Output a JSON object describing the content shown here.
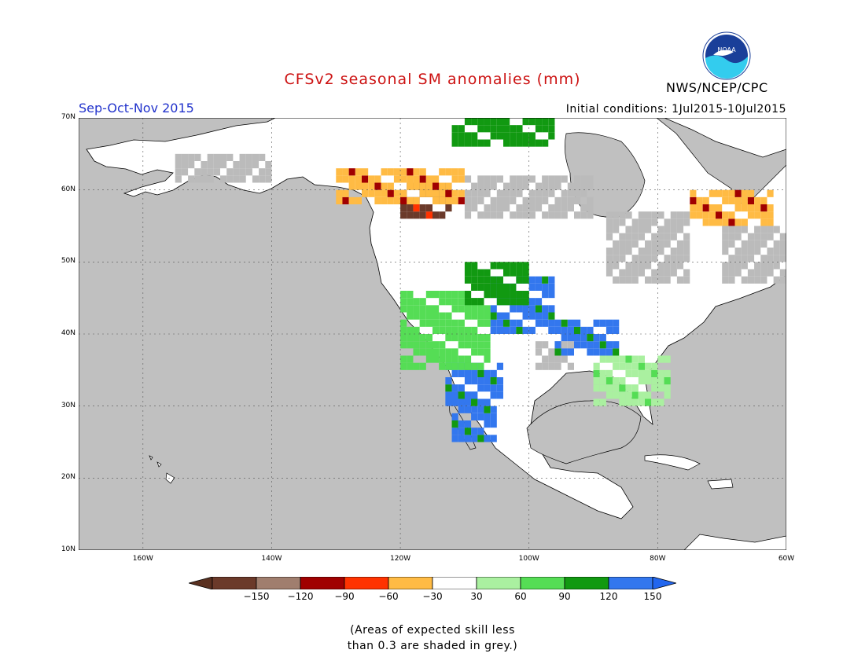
{
  "title": "CFSv2 seasonal SM anomalies (mm)",
  "season": "Sep-Oct-Nov 2015",
  "initial_conditions": "Initial conditions: 1Jul2015-10Jul2015",
  "agency": "NWS/NCEP/CPC",
  "logo_text": "NOAA",
  "note_line1": "(Areas of expected skill less",
  "note_line2": "than 0.3 are shaded in grey.)",
  "lat_labels": [
    "70N",
    "60N",
    "50N",
    "40N",
    "30N",
    "20N",
    "10N"
  ],
  "lon_labels": [
    "160W",
    "140W",
    "120W",
    "100W",
    "80W",
    "60W"
  ],
  "lon_values": [
    -160,
    -140,
    -120,
    -100,
    -80,
    -60
  ],
  "lat_values": [
    70,
    60,
    50,
    40,
    30,
    20,
    10
  ],
  "map_extent": {
    "lon_min": -170,
    "lon_max": -60,
    "lat_min": 10,
    "lat_max": 70
  },
  "colorbar": {
    "labels": [
      "-150",
      "-120",
      "-90",
      "-60",
      "-30",
      "30",
      "60",
      "90",
      "120",
      "150"
    ],
    "colors": [
      "#6b3a2a",
      "#a07e6e",
      "#a00000",
      "#ff3300",
      "#ffbb44",
      "#ffffff",
      "#aaf0a0",
      "#55dd55",
      "#119911",
      "#3377ee",
      "#3377ee"
    ],
    "colors_note": "extend left color #5a3020, right #2266ee"
  },
  "colors": {
    "ocean": "#c0c0c0",
    "land": "#ffffff",
    "grey_skill": "#bbbbbb",
    "title": "#cc1111",
    "season": "#2233cc"
  },
  "anomaly_regions": [
    {
      "name": "northern-plains-wet",
      "category": "150",
      "lon": [
        -106,
        -96
      ],
      "lat": [
        40,
        48
      ]
    },
    {
      "name": "midwest-wet",
      "category": "150",
      "lon": [
        -96,
        -86
      ],
      "lat": [
        37,
        42
      ]
    },
    {
      "name": "southwest-wet",
      "category": "150",
      "lon": [
        -113,
        -104
      ],
      "lat": [
        30,
        36
      ]
    },
    {
      "name": "mexico-wet",
      "category": "150",
      "lon": [
        -112,
        -105
      ],
      "lat": [
        25,
        32
      ]
    },
    {
      "name": "great-basin-moist",
      "category": "90",
      "lon": [
        -120,
        -106
      ],
      "lat": [
        35,
        46
      ]
    },
    {
      "name": "rockies-moist",
      "category": "120",
      "lon": [
        -110,
        -100
      ],
      "lat": [
        44,
        50
      ]
    },
    {
      "name": "southeast-moist",
      "category": "60",
      "lon": [
        -90,
        -78
      ],
      "lat": [
        30,
        37
      ]
    },
    {
      "name": "alberta-dry",
      "category": "-150",
      "lon": [
        -120,
        -112
      ],
      "lat": [
        56,
        61
      ]
    },
    {
      "name": "nw-canada-dry",
      "category": "-60",
      "lon": [
        -130,
        -110
      ],
      "lat": [
        58,
        63
      ]
    },
    {
      "name": "quebec-dry",
      "category": "-60",
      "lon": [
        -75,
        -62
      ],
      "lat": [
        55,
        60
      ]
    },
    {
      "name": "arctic-wet",
      "category": "120",
      "lon": [
        -112,
        -96
      ],
      "lat": [
        66,
        70
      ]
    }
  ],
  "grey_regions": [
    {
      "name": "hudson-grey",
      "lon": [
        -88,
        -75
      ],
      "lat": [
        47,
        57
      ]
    },
    {
      "name": "labrador-grey",
      "lon": [
        -70,
        -60
      ],
      "lat": [
        47,
        55
      ]
    },
    {
      "name": "nunavut-grey",
      "lon": [
        -110,
        -90
      ],
      "lat": [
        56,
        62
      ]
    },
    {
      "name": "alaska-grey",
      "lon": [
        -155,
        -140
      ],
      "lat": [
        61,
        65
      ]
    },
    {
      "name": "northern-great-plains-grey",
      "lon": [
        -99,
        -93
      ],
      "lat": [
        35,
        39
      ]
    }
  ]
}
